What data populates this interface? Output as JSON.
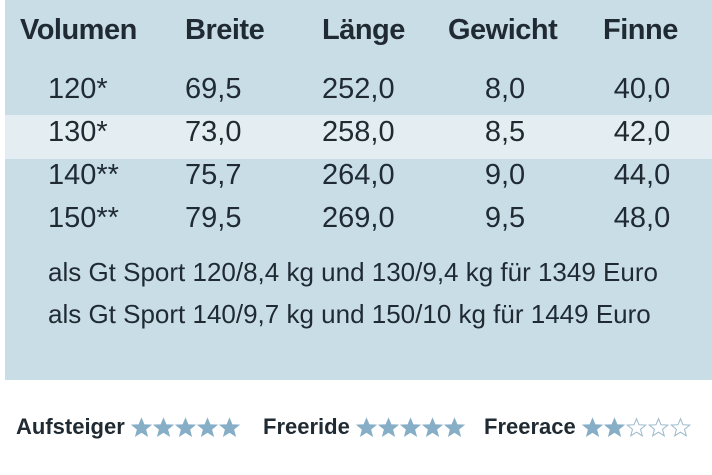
{
  "table": {
    "header": [
      "Volumen",
      "Breite",
      "Länge",
      "Gewicht",
      "Finne"
    ],
    "rows": [
      [
        "120*",
        "69,5",
        "252,0",
        "8,0",
        "40,0"
      ],
      [
        "130*",
        "73,0",
        "258,0",
        "8,5",
        "42,0"
      ],
      [
        "140**",
        "75,7",
        "264,0",
        "9,0",
        "44,0"
      ],
      [
        "150**",
        "79,5",
        "269,0",
        "9,5",
        "48,0"
      ]
    ],
    "notes": [
      "als Gt Sport 120/8,4 kg und 130/9,4 kg für 1349 Euro",
      "als Gt Sport 140/9,7 kg und 150/10 kg für 1449 Euro"
    ]
  },
  "ratings": {
    "scale": 5,
    "items": [
      {
        "label": "Aufsteiger",
        "stars": 5
      },
      {
        "label": "Freeride",
        "stars": 5
      },
      {
        "label": "Freerace",
        "stars": 2
      }
    ]
  }
}
